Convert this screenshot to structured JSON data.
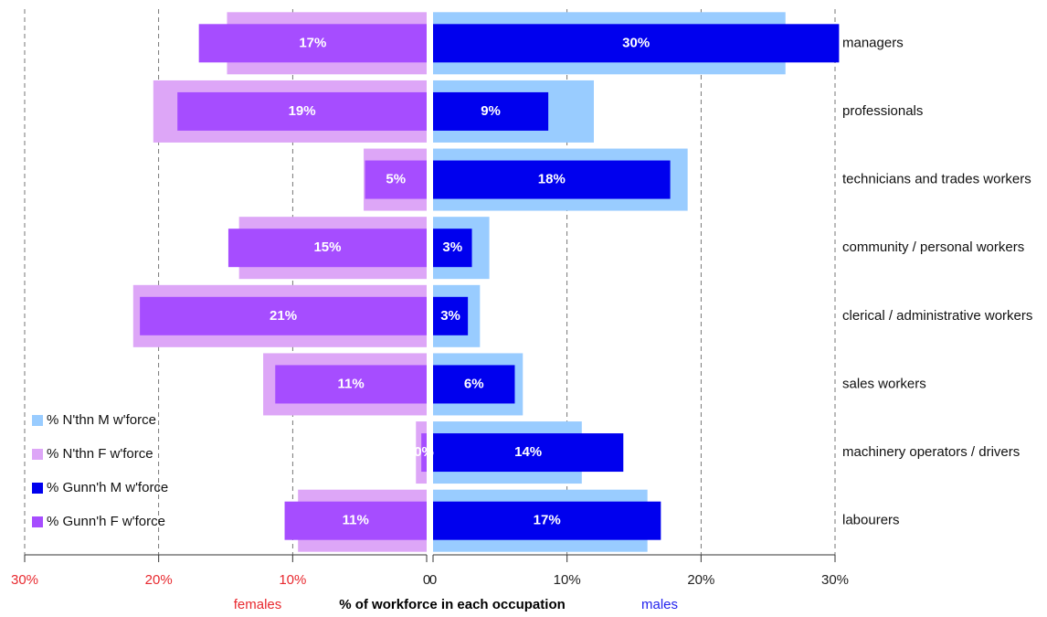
{
  "chart_data": {
    "type": "butterfly",
    "categories": [
      "managers",
      "professionals",
      "technicians and trades workers",
      "community / personal workers",
      "clerical / administrative workers",
      "sales workers",
      "machinery operators / drivers",
      "labourers"
    ],
    "series": [
      {
        "name": "% N'thn M w'force",
        "color": "#99ccff",
        "side": "right",
        "values": [
          26.3,
          12.0,
          19.0,
          4.2,
          3.5,
          6.7,
          11.1,
          16.0
        ]
      },
      {
        "name": "% N'thn F w'force",
        "color": "#dda6f7",
        "side": "left",
        "values": [
          14.9,
          20.4,
          4.7,
          14.0,
          21.9,
          12.2,
          0.8,
          9.6
        ]
      },
      {
        "name": "% Gunn'h M w'force",
        "color": "#0000ee",
        "side": "right",
        "values": [
          30.3,
          8.6,
          17.7,
          2.9,
          2.6,
          6.1,
          14.2,
          17.0
        ],
        "value_labels": [
          "30%",
          "9%",
          "18%",
          "3%",
          "3%",
          "6%",
          "14%",
          "17%"
        ]
      },
      {
        "name": "% Gunn'h F w'force",
        "color": "#a64dff",
        "side": "left",
        "values": [
          17.0,
          18.6,
          4.6,
          14.8,
          21.4,
          11.3,
          0.4,
          10.6
        ],
        "value_labels": [
          "17%",
          "19%",
          "5%",
          "15%",
          "21%",
          "11%",
          "0%",
          "11%"
        ]
      }
    ],
    "left_axis": {
      "label": "females",
      "label_color": "#e8292f",
      "tick_color": "#e8292f",
      "xlim": [
        0,
        30
      ],
      "xticks": [
        {
          "value": 30,
          "label": "30%"
        },
        {
          "value": 20,
          "label": "20%"
        },
        {
          "value": 10,
          "label": "10%"
        },
        0
      ]
    },
    "right_axis": {
      "label": "males",
      "label_color": "#2222ee",
      "tick_color": "#222222",
      "xlim": [
        0,
        30
      ],
      "xticks": [
        0,
        {
          "value": 10,
          "label": "10%"
        },
        {
          "value": 20,
          "label": "20%"
        },
        {
          "value": 30,
          "label": "30%"
        }
      ]
    },
    "xlabel": "% of workforce in each occupation",
    "grid": true
  }
}
